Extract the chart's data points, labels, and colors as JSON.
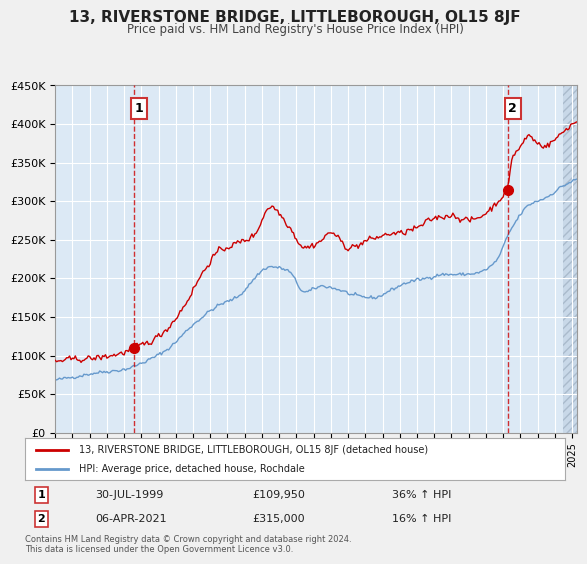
{
  "title": "13, RIVERSTONE BRIDGE, LITTLEBOROUGH, OL15 8JF",
  "subtitle": "Price paid vs. HM Land Registry's House Price Index (HPI)",
  "red_label": "13, RIVERSTONE BRIDGE, LITTLEBOROUGH, OL15 8JF (detached house)",
  "blue_label": "HPI: Average price, detached house, Rochdale",
  "annotation1_date": "30-JUL-1999",
  "annotation1_price": 109950,
  "annotation1_pct": "36% ↑ HPI",
  "annotation2_date": "06-APR-2021",
  "annotation2_price": 315000,
  "annotation2_pct": "16% ↑ HPI",
  "copyright_text": "Contains HM Land Registry data © Crown copyright and database right 2024.\nThis data is licensed under the Open Government Licence v3.0.",
  "ylim": [
    0,
    450000
  ],
  "yticks": [
    0,
    50000,
    100000,
    150000,
    200000,
    250000,
    300000,
    350000,
    400000,
    450000
  ],
  "xlim_start": 1995.0,
  "xlim_end": 2025.3,
  "background_color": "#dce9f5",
  "plot_bg_color": "#dce9f5",
  "grid_color": "#ffffff",
  "red_color": "#cc0000",
  "blue_color": "#6699cc",
  "hatch_color": "#bbccdd",
  "sale1_x": 1999.58,
  "sale1_y": 109950,
  "sale2_x": 2021.26,
  "sale2_y": 315000
}
